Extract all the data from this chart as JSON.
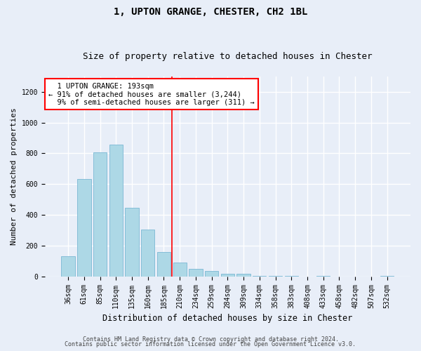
{
  "title_line1": "1, UPTON GRANGE, CHESTER, CH2 1BL",
  "title_line2": "Size of property relative to detached houses in Chester",
  "xlabel": "Distribution of detached houses by size in Chester",
  "ylabel": "Number of detached properties",
  "footnote1": "Contains HM Land Registry data © Crown copyright and database right 2024.",
  "footnote2": "Contains public sector information licensed under the Open Government Licence v3.0.",
  "bar_labels": [
    "36sqm",
    "61sqm",
    "85sqm",
    "110sqm",
    "135sqm",
    "160sqm",
    "185sqm",
    "210sqm",
    "234sqm",
    "259sqm",
    "284sqm",
    "309sqm",
    "334sqm",
    "358sqm",
    "383sqm",
    "408sqm",
    "433sqm",
    "458sqm",
    "482sqm",
    "507sqm",
    "532sqm"
  ],
  "bar_values": [
    130,
    635,
    805,
    855,
    445,
    305,
    160,
    90,
    50,
    35,
    15,
    15,
    5,
    5,
    5,
    0,
    5,
    0,
    0,
    0,
    5
  ],
  "bar_color": "#add8e6",
  "bar_edge_color": "#7ab8d4",
  "annotation_box_text": "  1 UPTON GRANGE: 193sqm\n← 91% of detached houses are smaller (3,244)\n  9% of semi-detached houses are larger (311) →",
  "vline_x": 6.5,
  "vline_color": "red",
  "annotation_box_color": "white",
  "annotation_box_edge_color": "red",
  "ylim": [
    0,
    1300
  ],
  "yticks": [
    0,
    200,
    400,
    600,
    800,
    1000,
    1200
  ],
  "background_color": "#e8eef8",
  "grid_color": "white",
  "title_fontsize": 10,
  "subtitle_fontsize": 9,
  "xlabel_fontsize": 8.5,
  "ylabel_fontsize": 8,
  "tick_fontsize": 7,
  "annotation_fontsize": 7.5,
  "footnote_fontsize": 6
}
